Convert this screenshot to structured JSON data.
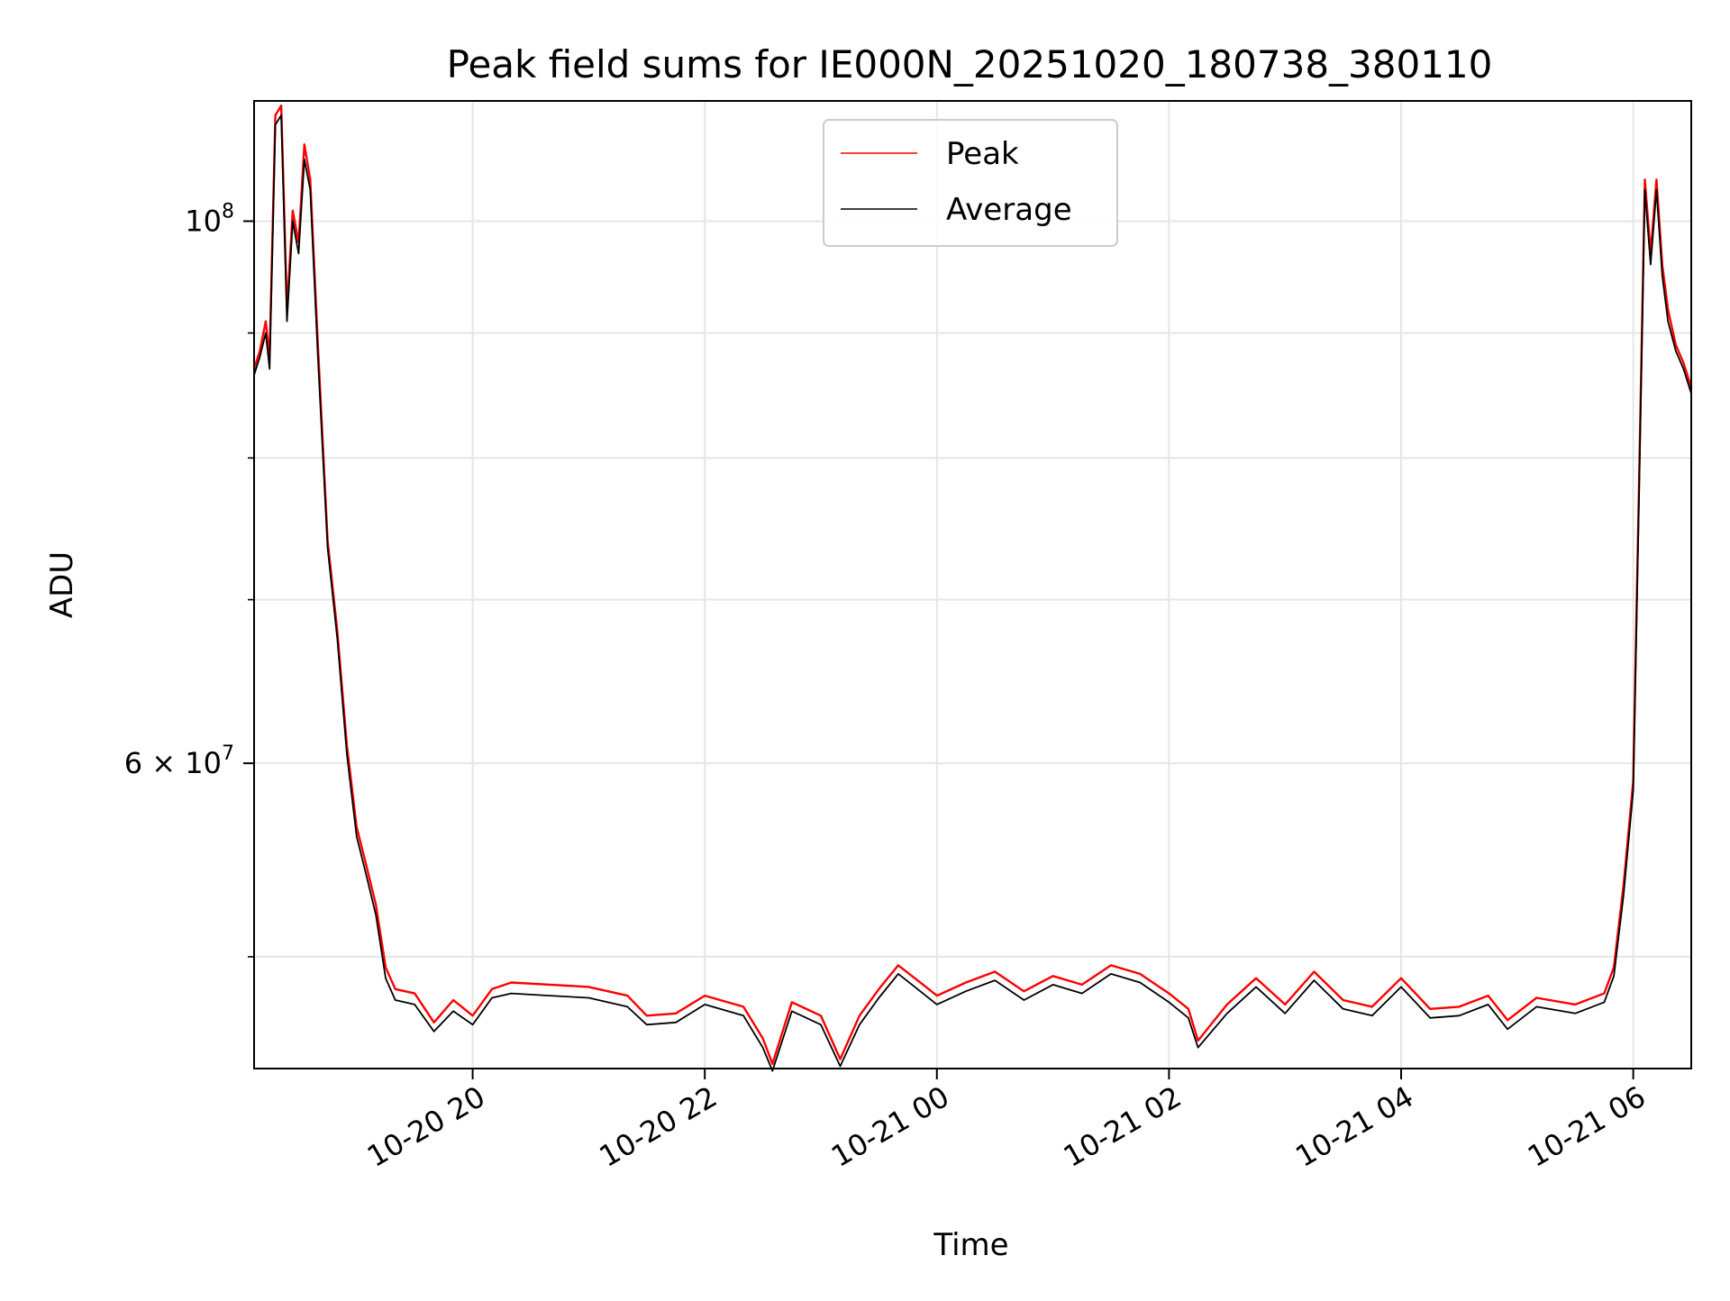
{
  "chart_data": {
    "type": "line",
    "title": "Peak field sums for IE000N_20251020_180738_380110",
    "xlabel": "Time",
    "ylabel": "ADU",
    "y_scale": "log",
    "grid": true,
    "legend_position": "top-center",
    "x_range": [
      "2025-10-20 18:07",
      "2025-10-21 06:30"
    ],
    "ylim": [
      45000000,
      112000000
    ],
    "x_ticks": [
      {
        "value": "2025-10-20 20:00",
        "label": "10-20 20"
      },
      {
        "value": "2025-10-20 22:00",
        "label": "10-20 22"
      },
      {
        "value": "2025-10-21 00:00",
        "label": "10-21 00"
      },
      {
        "value": "2025-10-21 02:00",
        "label": "10-21 02"
      },
      {
        "value": "2025-10-21 04:00",
        "label": "10-21 04"
      },
      {
        "value": "2025-10-21 06:00",
        "label": "10-21 06"
      }
    ],
    "y_major_ticks": [
      {
        "value": 60000000,
        "mantissa": "6",
        "base": "10",
        "exponent": "7"
      },
      {
        "value": 100000000,
        "mantissa": "",
        "base": "10",
        "exponent": "8"
      }
    ],
    "y_minor_ticks": [
      50000000,
      70000000,
      80000000,
      90000000
    ],
    "series": [
      {
        "name": "Peak",
        "color": "#ff0000",
        "points": [
          [
            "2025-10-20 18:07",
            87000000
          ],
          [
            "2025-10-20 18:10",
            88500000
          ],
          [
            "2025-10-20 18:13",
            91000000
          ],
          [
            "2025-10-20 18:15",
            88000000
          ],
          [
            "2025-10-20 18:18",
            110500000
          ],
          [
            "2025-10-20 18:21",
            111500000
          ],
          [
            "2025-10-20 18:24",
            92000000
          ],
          [
            "2025-10-20 18:27",
            101000000
          ],
          [
            "2025-10-20 18:30",
            98000000
          ],
          [
            "2025-10-20 18:33",
            107500000
          ],
          [
            "2025-10-20 18:36",
            104000000
          ],
          [
            "2025-10-20 18:40",
            89000000
          ],
          [
            "2025-10-20 18:45",
            74000000
          ],
          [
            "2025-10-20 18:50",
            68000000
          ],
          [
            "2025-10-20 18:55",
            61000000
          ],
          [
            "2025-10-20 19:00",
            56500000
          ],
          [
            "2025-10-20 19:05",
            54500000
          ],
          [
            "2025-10-20 19:10",
            52500000
          ],
          [
            "2025-10-20 19:15",
            49500000
          ],
          [
            "2025-10-20 19:20",
            48500000
          ],
          [
            "2025-10-20 19:30",
            48300000
          ],
          [
            "2025-10-20 19:40",
            47000000
          ],
          [
            "2025-10-20 19:50",
            48000000
          ],
          [
            "2025-10-20 20:00",
            47300000
          ],
          [
            "2025-10-20 20:10",
            48500000
          ],
          [
            "2025-10-20 20:20",
            48800000
          ],
          [
            "2025-10-20 20:40",
            48700000
          ],
          [
            "2025-10-20 21:00",
            48600000
          ],
          [
            "2025-10-20 21:20",
            48200000
          ],
          [
            "2025-10-20 21:30",
            47300000
          ],
          [
            "2025-10-20 21:45",
            47400000
          ],
          [
            "2025-10-20 22:00",
            48200000
          ],
          [
            "2025-10-20 22:20",
            47700000
          ],
          [
            "2025-10-20 22:30",
            46300000
          ],
          [
            "2025-10-20 22:35",
            45200000
          ],
          [
            "2025-10-20 22:45",
            47900000
          ],
          [
            "2025-10-20 23:00",
            47300000
          ],
          [
            "2025-10-20 23:10",
            45400000
          ],
          [
            "2025-10-20 23:20",
            47300000
          ],
          [
            "2025-10-20 23:30",
            48500000
          ],
          [
            "2025-10-20 23:40",
            49600000
          ],
          [
            "2025-10-20 23:50",
            48900000
          ],
          [
            "2025-10-21 00:00",
            48200000
          ],
          [
            "2025-10-21 00:15",
            48800000
          ],
          [
            "2025-10-21 00:30",
            49300000
          ],
          [
            "2025-10-21 00:45",
            48400000
          ],
          [
            "2025-10-21 01:00",
            49100000
          ],
          [
            "2025-10-21 01:15",
            48700000
          ],
          [
            "2025-10-21 01:30",
            49600000
          ],
          [
            "2025-10-21 01:45",
            49200000
          ],
          [
            "2025-10-21 02:00",
            48300000
          ],
          [
            "2025-10-21 02:10",
            47600000
          ],
          [
            "2025-10-21 02:15",
            46200000
          ],
          [
            "2025-10-21 02:30",
            47800000
          ],
          [
            "2025-10-21 02:45",
            49000000
          ],
          [
            "2025-10-21 03:00",
            47800000
          ],
          [
            "2025-10-21 03:15",
            49300000
          ],
          [
            "2025-10-21 03:30",
            48000000
          ],
          [
            "2025-10-21 03:45",
            47700000
          ],
          [
            "2025-10-21 04:00",
            49000000
          ],
          [
            "2025-10-21 04:15",
            47600000
          ],
          [
            "2025-10-21 04:30",
            47700000
          ],
          [
            "2025-10-21 04:45",
            48200000
          ],
          [
            "2025-10-21 04:55",
            47100000
          ],
          [
            "2025-10-21 05:10",
            48100000
          ],
          [
            "2025-10-21 05:30",
            47800000
          ],
          [
            "2025-10-21 05:45",
            48300000
          ],
          [
            "2025-10-21 05:50",
            49500000
          ],
          [
            "2025-10-21 05:55",
            53500000
          ],
          [
            "2025-10-21 06:00",
            59000000
          ],
          [
            "2025-10-21 06:03",
            78000000
          ],
          [
            "2025-10-21 06:06",
            104000000
          ],
          [
            "2025-10-21 06:09",
            97000000
          ],
          [
            "2025-10-21 06:12",
            104000000
          ],
          [
            "2025-10-21 06:15",
            96000000
          ],
          [
            "2025-10-21 06:18",
            92000000
          ],
          [
            "2025-10-21 06:22",
            89000000
          ],
          [
            "2025-10-21 06:26",
            87500000
          ],
          [
            "2025-10-21 06:30",
            85500000
          ]
        ]
      },
      {
        "name": "Average",
        "color": "#000000",
        "points": [
          [
            "2025-10-20 18:07",
            86500000
          ],
          [
            "2025-10-20 18:10",
            88000000
          ],
          [
            "2025-10-20 18:13",
            90000000
          ],
          [
            "2025-10-20 18:15",
            87000000
          ],
          [
            "2025-10-20 18:18",
            109500000
          ],
          [
            "2025-10-20 18:21",
            110500000
          ],
          [
            "2025-10-20 18:24",
            91000000
          ],
          [
            "2025-10-20 18:27",
            100000000
          ],
          [
            "2025-10-20 18:30",
            97000000
          ],
          [
            "2025-10-20 18:33",
            106000000
          ],
          [
            "2025-10-20 18:36",
            103000000
          ],
          [
            "2025-10-20 18:40",
            88000000
          ],
          [
            "2025-10-20 18:45",
            73500000
          ],
          [
            "2025-10-20 18:50",
            67500000
          ],
          [
            "2025-10-20 18:55",
            60500000
          ],
          [
            "2025-10-20 19:00",
            56000000
          ],
          [
            "2025-10-20 19:05",
            54000000
          ],
          [
            "2025-10-20 19:10",
            52000000
          ],
          [
            "2025-10-20 19:15",
            49000000
          ],
          [
            "2025-10-20 19:20",
            48000000
          ],
          [
            "2025-10-20 19:30",
            47800000
          ],
          [
            "2025-10-20 19:40",
            46600000
          ],
          [
            "2025-10-20 19:50",
            47500000
          ],
          [
            "2025-10-20 20:00",
            46900000
          ],
          [
            "2025-10-20 20:10",
            48100000
          ],
          [
            "2025-10-20 20:20",
            48300000
          ],
          [
            "2025-10-20 20:40",
            48200000
          ],
          [
            "2025-10-20 21:00",
            48100000
          ],
          [
            "2025-10-20 21:20",
            47700000
          ],
          [
            "2025-10-20 21:30",
            46900000
          ],
          [
            "2025-10-20 21:45",
            47000000
          ],
          [
            "2025-10-20 22:00",
            47800000
          ],
          [
            "2025-10-20 22:20",
            47300000
          ],
          [
            "2025-10-20 22:30",
            45900000
          ],
          [
            "2025-10-20 22:35",
            44900000
          ],
          [
            "2025-10-20 22:45",
            47500000
          ],
          [
            "2025-10-20 23:00",
            46900000
          ],
          [
            "2025-10-20 23:10",
            45100000
          ],
          [
            "2025-10-20 23:20",
            46900000
          ],
          [
            "2025-10-20 23:30",
            48100000
          ],
          [
            "2025-10-20 23:40",
            49200000
          ],
          [
            "2025-10-20 23:50",
            48500000
          ],
          [
            "2025-10-21 00:00",
            47800000
          ],
          [
            "2025-10-21 00:15",
            48400000
          ],
          [
            "2025-10-21 00:30",
            48900000
          ],
          [
            "2025-10-21 00:45",
            48000000
          ],
          [
            "2025-10-21 01:00",
            48700000
          ],
          [
            "2025-10-21 01:15",
            48300000
          ],
          [
            "2025-10-21 01:30",
            49200000
          ],
          [
            "2025-10-21 01:45",
            48800000
          ],
          [
            "2025-10-21 02:00",
            47900000
          ],
          [
            "2025-10-21 02:10",
            47200000
          ],
          [
            "2025-10-21 02:15",
            45900000
          ],
          [
            "2025-10-21 02:30",
            47400000
          ],
          [
            "2025-10-21 02:45",
            48600000
          ],
          [
            "2025-10-21 03:00",
            47400000
          ],
          [
            "2025-10-21 03:15",
            48900000
          ],
          [
            "2025-10-21 03:30",
            47600000
          ],
          [
            "2025-10-21 03:45",
            47300000
          ],
          [
            "2025-10-21 04:00",
            48600000
          ],
          [
            "2025-10-21 04:15",
            47200000
          ],
          [
            "2025-10-21 04:30",
            47300000
          ],
          [
            "2025-10-21 04:45",
            47800000
          ],
          [
            "2025-10-21 04:55",
            46700000
          ],
          [
            "2025-10-21 05:10",
            47700000
          ],
          [
            "2025-10-21 05:30",
            47400000
          ],
          [
            "2025-10-21 05:45",
            47900000
          ],
          [
            "2025-10-21 05:50",
            49100000
          ],
          [
            "2025-10-21 05:55",
            53000000
          ],
          [
            "2025-10-21 06:00",
            58500000
          ],
          [
            "2025-10-21 06:03",
            77000000
          ],
          [
            "2025-10-21 06:06",
            103000000
          ],
          [
            "2025-10-21 06:09",
            96000000
          ],
          [
            "2025-10-21 06:12",
            103000000
          ],
          [
            "2025-10-21 06:15",
            95000000
          ],
          [
            "2025-10-21 06:18",
            91000000
          ],
          [
            "2025-10-21 06:22",
            88500000
          ],
          [
            "2025-10-21 06:26",
            87000000
          ],
          [
            "2025-10-21 06:30",
            85000000
          ]
        ]
      }
    ]
  }
}
